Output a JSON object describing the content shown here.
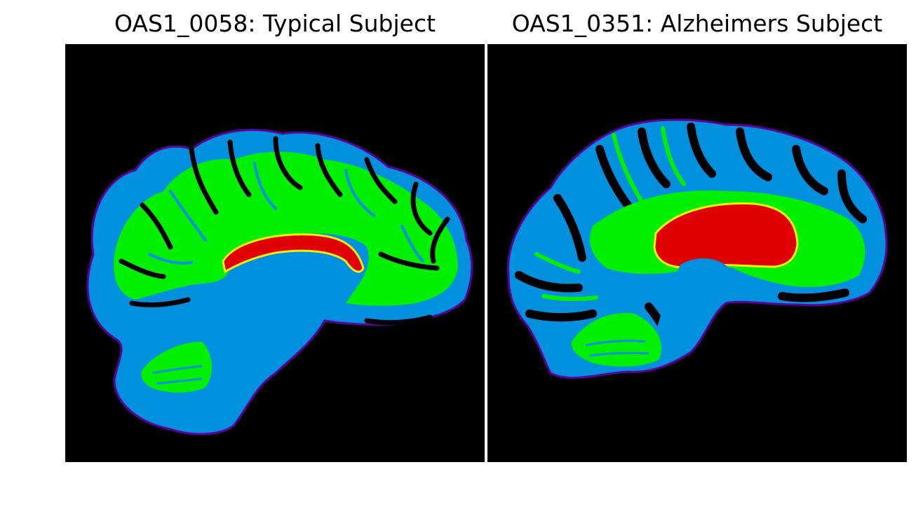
{
  "figure": {
    "panels": [
      {
        "title": "OAS1_0058: Typical Subject",
        "image": "sagittal brain MRI tissue segmentation"
      },
      {
        "title": "OAS1_0351: Alzheimers Subject",
        "image": "sagittal brain MRI tissue segmentation"
      }
    ],
    "colors": {
      "background": "#000000",
      "csf_gm": "#0090dd",
      "white_matter": "#00f000",
      "ventricle": "#e00000",
      "boundary": "#5a00a0",
      "transition": "#f0f000"
    }
  }
}
